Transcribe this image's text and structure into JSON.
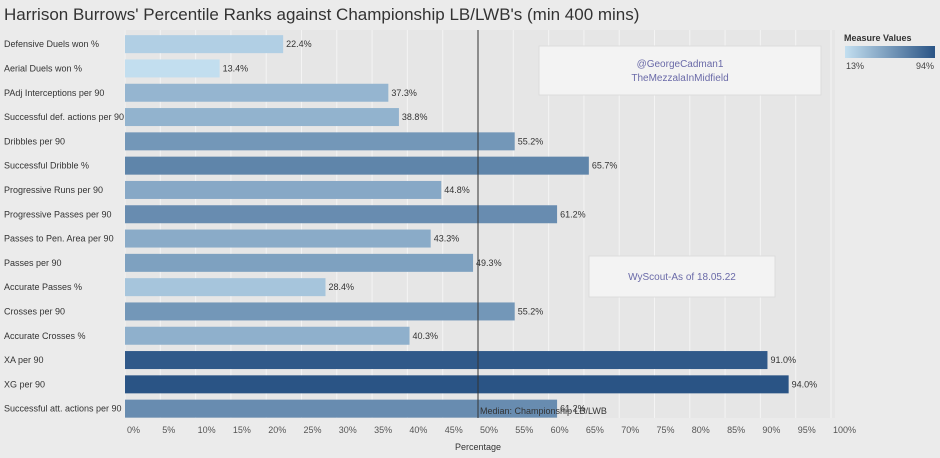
{
  "chart_data": {
    "type": "bar",
    "orientation": "horizontal",
    "title": "Harrison Burrows' Percentile Ranks against Championship LB/LWB's (min 400 mins)",
    "xlabel": "Percentage",
    "xlim": [
      0,
      100
    ],
    "xticks": [
      "0%",
      "5%",
      "10%",
      "15%",
      "20%",
      "25%",
      "30%",
      "35%",
      "40%",
      "45%",
      "50%",
      "55%",
      "60%",
      "65%",
      "70%",
      "75%",
      "80%",
      "85%",
      "90%",
      "95%",
      "100%"
    ],
    "categories": [
      "Defensive Duels won %",
      "Aerial Duels won %",
      "PAdj Interceptions per 90",
      "Successful def. actions per 90",
      "Dribbles per 90",
      "Successful Dribble %",
      "Progressive Runs per 90",
      "Progressive Passes per 90",
      "Passes to Pen. Area per 90",
      "Passes per 90",
      "Accurate Passes %",
      "Crosses per 90",
      "Accurate Crosses %",
      "XA per 90",
      "XG per 90",
      "Successful att. actions per 90"
    ],
    "values": [
      22.4,
      13.4,
      37.3,
      38.8,
      55.2,
      65.7,
      44.8,
      61.2,
      43.3,
      49.3,
      28.4,
      55.2,
      40.3,
      91.0,
      94.0,
      61.2
    ],
    "value_labels": [
      "22.4%",
      "13.4%",
      "37.3%",
      "38.8%",
      "55.2%",
      "65.7%",
      "44.8%",
      "61.2%",
      "43.3%",
      "49.3%",
      "28.4%",
      "55.2%",
      "40.3%",
      "91.0%",
      "94.0%",
      "61.2%"
    ],
    "color_min_value": 13,
    "color_max_value": 94,
    "color_min": "#c3dff0",
    "color_max": "#2a5485",
    "reference_line": {
      "value": 50,
      "label": "Median: Championship LB/LWB"
    },
    "legend": {
      "title": "Measure Values",
      "min_label": "13%",
      "max_label": "94%",
      "position": "top-right"
    },
    "annotations": [
      {
        "lines": [
          "@GeorgeCadman1",
          "TheMezzalaInMidfield"
        ]
      },
      {
        "lines": [
          "WyScout-As of 18.05.22"
        ]
      }
    ]
  }
}
